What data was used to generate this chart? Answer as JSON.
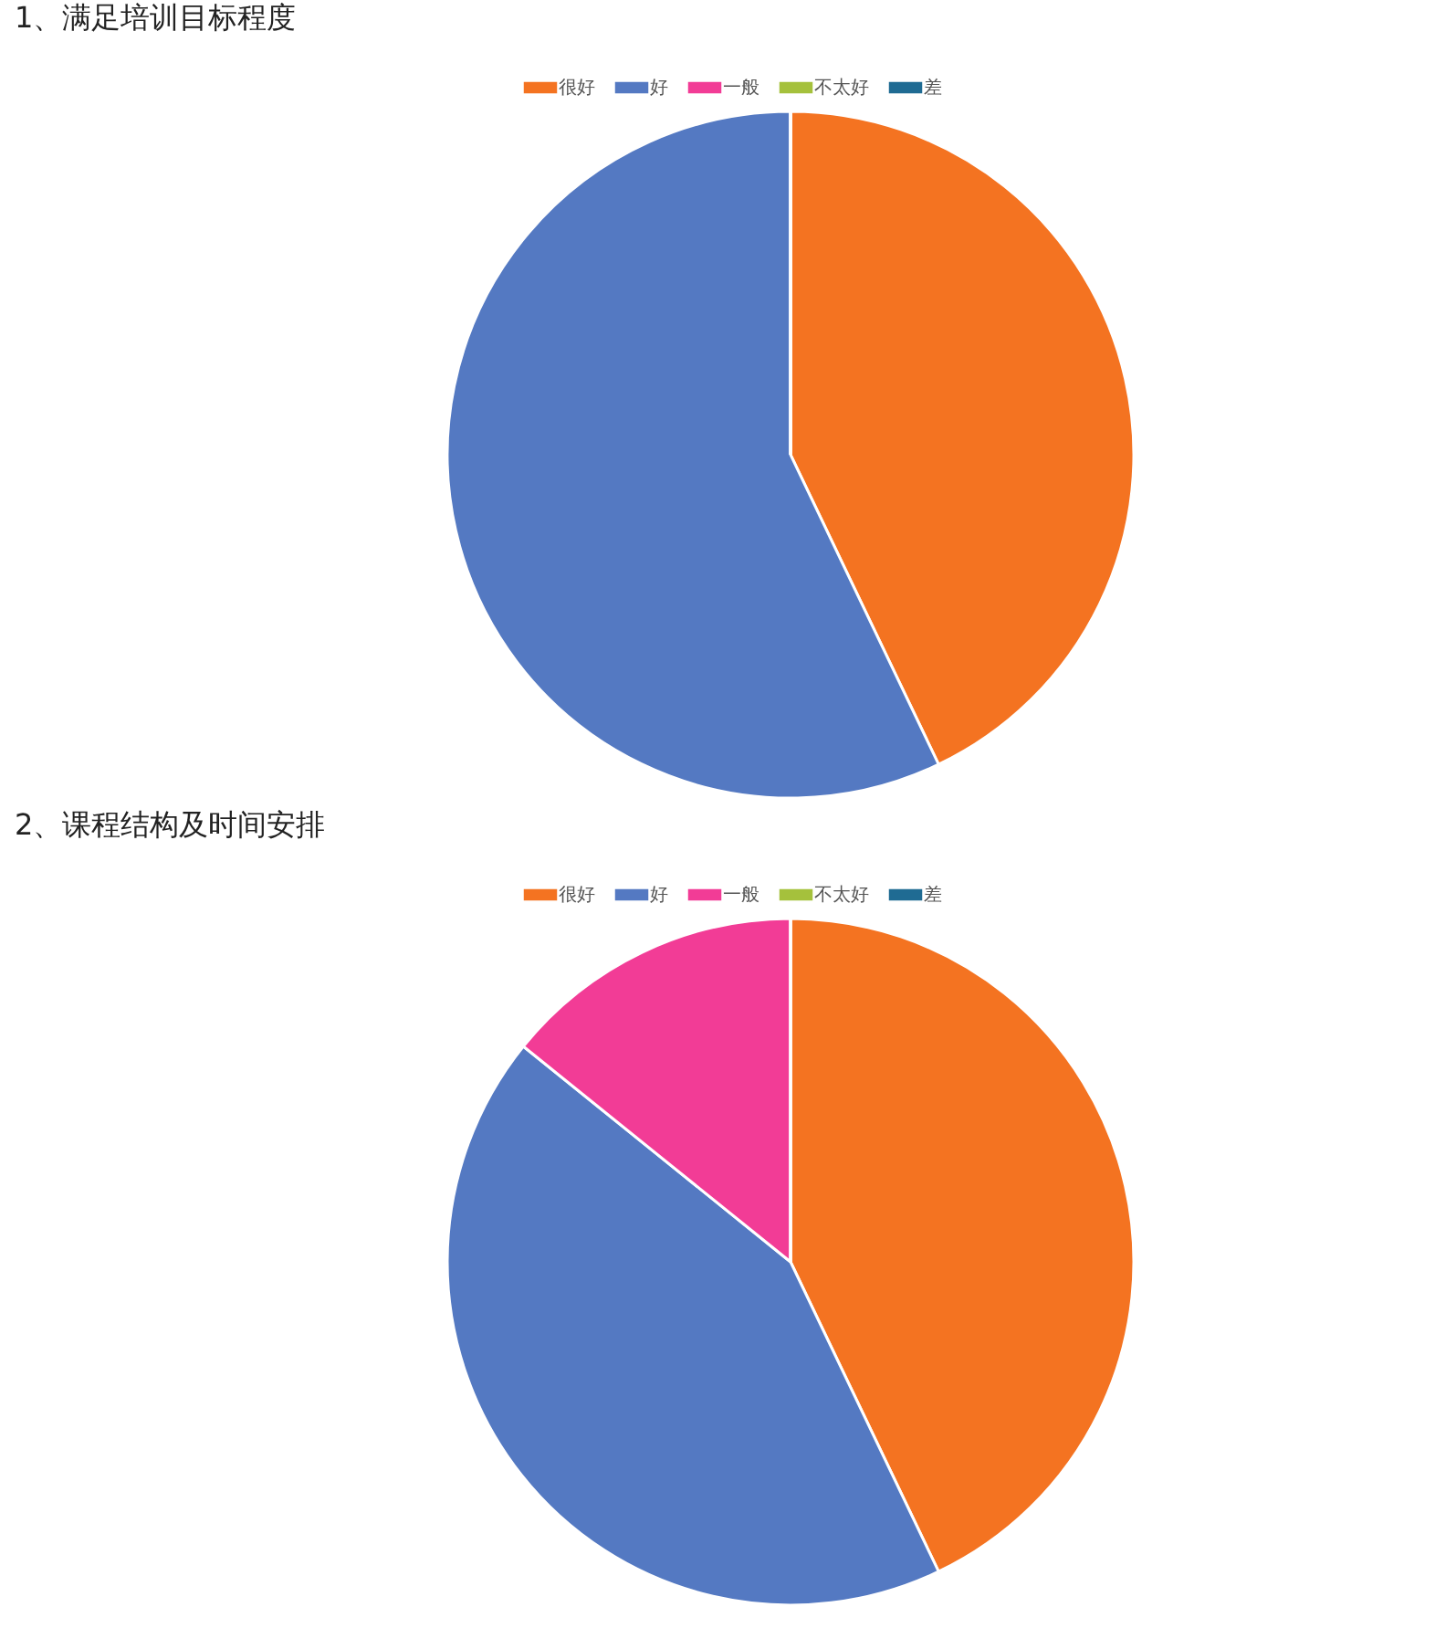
{
  "chart_data": [
    {
      "type": "pie",
      "title": "1、满足培训目标程度",
      "categories": [
        "很好",
        "好",
        "一般",
        "不太好",
        "差"
      ],
      "values": [
        42.9,
        57.1,
        0,
        0,
        0
      ],
      "colors": [
        "#f47321",
        "#5479c2",
        "#f23c96",
        "#a5c13c",
        "#1f6b93"
      ],
      "legend": "top"
    },
    {
      "type": "pie",
      "title": "2、课程结构及时间安排",
      "categories": [
        "很好",
        "好",
        "一般",
        "不太好",
        "差"
      ],
      "values": [
        42.9,
        42.9,
        14.2,
        0,
        0
      ],
      "colors": [
        "#f47321",
        "#5479c2",
        "#f23c96",
        "#a5c13c",
        "#1f6b93"
      ],
      "legend": "top"
    }
  ]
}
